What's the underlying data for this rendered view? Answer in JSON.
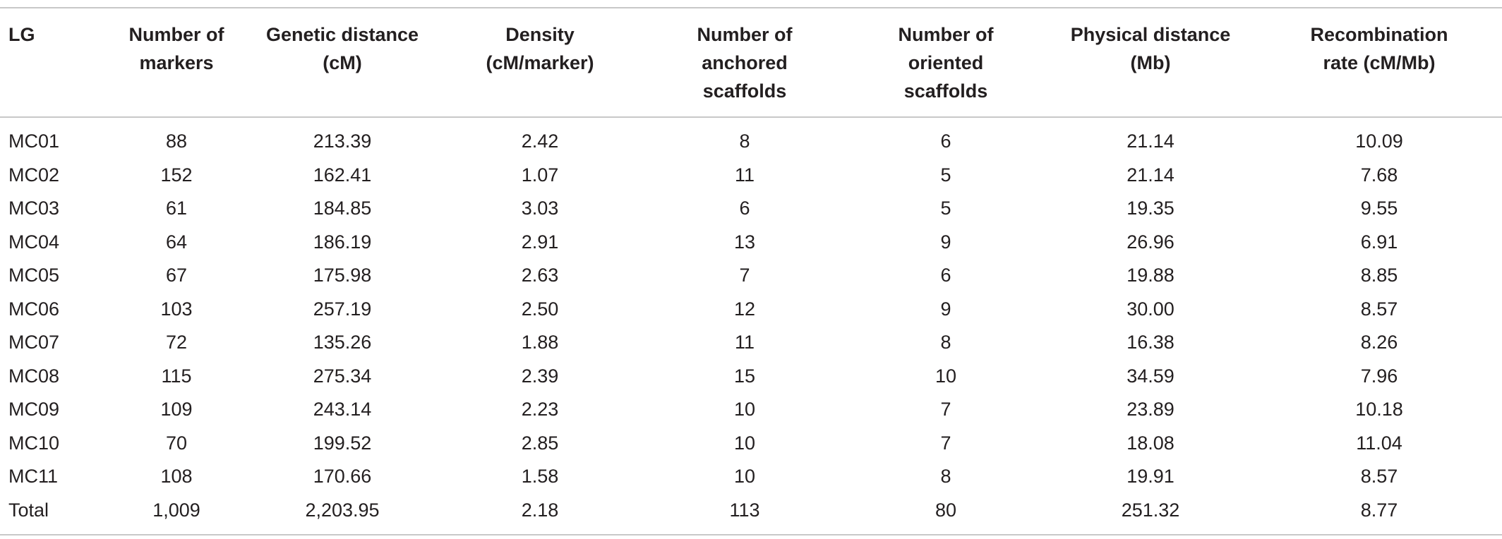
{
  "table": {
    "headers": [
      "LG",
      "Number of\nmarkers",
      "Genetic distance\n(cM)",
      "Density\n(cM/marker)",
      "Number of\nanchored\nscaffolds",
      "Number of\noriented\nscaffolds",
      "Physical distance\n(Mb)",
      "Recombination\nrate (cM/Mb)"
    ],
    "rows": [
      [
        "MC01",
        "88",
        "213.39",
        "2.42",
        "8",
        "6",
        "21.14",
        "10.09"
      ],
      [
        "MC02",
        "152",
        "162.41",
        "1.07",
        "11",
        "5",
        "21.14",
        "7.68"
      ],
      [
        "MC03",
        "61",
        "184.85",
        "3.03",
        "6",
        "5",
        "19.35",
        "9.55"
      ],
      [
        "MC04",
        "64",
        "186.19",
        "2.91",
        "13",
        "9",
        "26.96",
        "6.91"
      ],
      [
        "MC05",
        "67",
        "175.98",
        "2.63",
        "7",
        "6",
        "19.88",
        "8.85"
      ],
      [
        "MC06",
        "103",
        "257.19",
        "2.50",
        "12",
        "9",
        "30.00",
        "8.57"
      ],
      [
        "MC07",
        "72",
        "135.26",
        "1.88",
        "11",
        "8",
        "16.38",
        "8.26"
      ],
      [
        "MC08",
        "115",
        "275.34",
        "2.39",
        "15",
        "10",
        "34.59",
        "7.96"
      ],
      [
        "MC09",
        "109",
        "243.14",
        "2.23",
        "10",
        "7",
        "23.89",
        "10.18"
      ],
      [
        "MC10",
        "70",
        "199.52",
        "2.85",
        "10",
        "7",
        "18.08",
        "11.04"
      ],
      [
        "MC11",
        "108",
        "170.66",
        "1.58",
        "10",
        "8",
        "19.91",
        "8.57"
      ],
      [
        "Total",
        "1,009",
        "2,203.95",
        "2.18",
        "113",
        "80",
        "251.32",
        "8.77"
      ]
    ]
  }
}
